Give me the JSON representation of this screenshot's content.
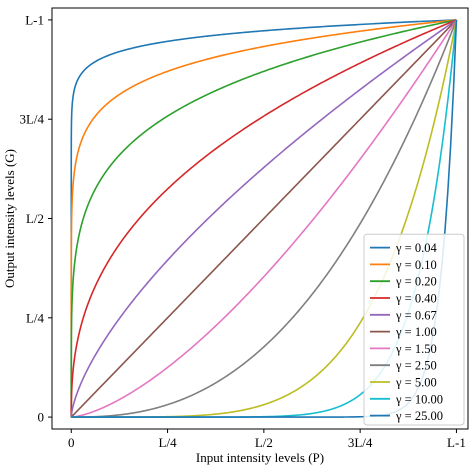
{
  "chart_data": {
    "type": "line",
    "title": "",
    "xlabel": "Input intensity levels (P)",
    "ylabel": "Output intensity levels (G)",
    "xlim": [
      -0.05,
      1.03
    ],
    "ylim": [
      -0.03,
      1.03
    ],
    "xticks": [
      {
        "value": 0,
        "label": "0"
      },
      {
        "value": 0.25,
        "label": "L/4"
      },
      {
        "value": 0.5,
        "label": "L/2"
      },
      {
        "value": 0.75,
        "label": "3L/4"
      },
      {
        "value": 1,
        "label": "L-1"
      }
    ],
    "yticks": [
      {
        "value": 0,
        "label": "0"
      },
      {
        "value": 0.25,
        "label": "L/4"
      },
      {
        "value": 0.5,
        "label": "L/2"
      },
      {
        "value": 0.75,
        "label": "3L/4"
      },
      {
        "value": 1,
        "label": "L-1"
      }
    ],
    "function": "G = (L-1) * (P/(L-1))^gamma",
    "grid": false,
    "legend_position": "lower-right",
    "series": [
      {
        "name": "γ = 0.04",
        "gamma": 0.04,
        "color": "#1f77b4"
      },
      {
        "name": "γ = 0.10",
        "gamma": 0.1,
        "color": "#ff7f0e"
      },
      {
        "name": "γ = 0.20",
        "gamma": 0.2,
        "color": "#2ca02c"
      },
      {
        "name": "γ = 0.40",
        "gamma": 0.4,
        "color": "#d62728"
      },
      {
        "name": "γ = 0.67",
        "gamma": 0.67,
        "color": "#9467bd"
      },
      {
        "name": "γ = 1.00",
        "gamma": 1.0,
        "color": "#8c564b"
      },
      {
        "name": "γ = 1.50",
        "gamma": 1.5,
        "color": "#e377c2"
      },
      {
        "name": "γ = 2.50",
        "gamma": 2.5,
        "color": "#7f7f7f"
      },
      {
        "name": "γ = 5.00",
        "gamma": 5.0,
        "color": "#bcbd22"
      },
      {
        "name": "γ = 10.00",
        "gamma": 10.0,
        "color": "#17becf"
      },
      {
        "name": "γ = 25.00",
        "gamma": 25.0,
        "color": "#1f77b4"
      }
    ]
  }
}
